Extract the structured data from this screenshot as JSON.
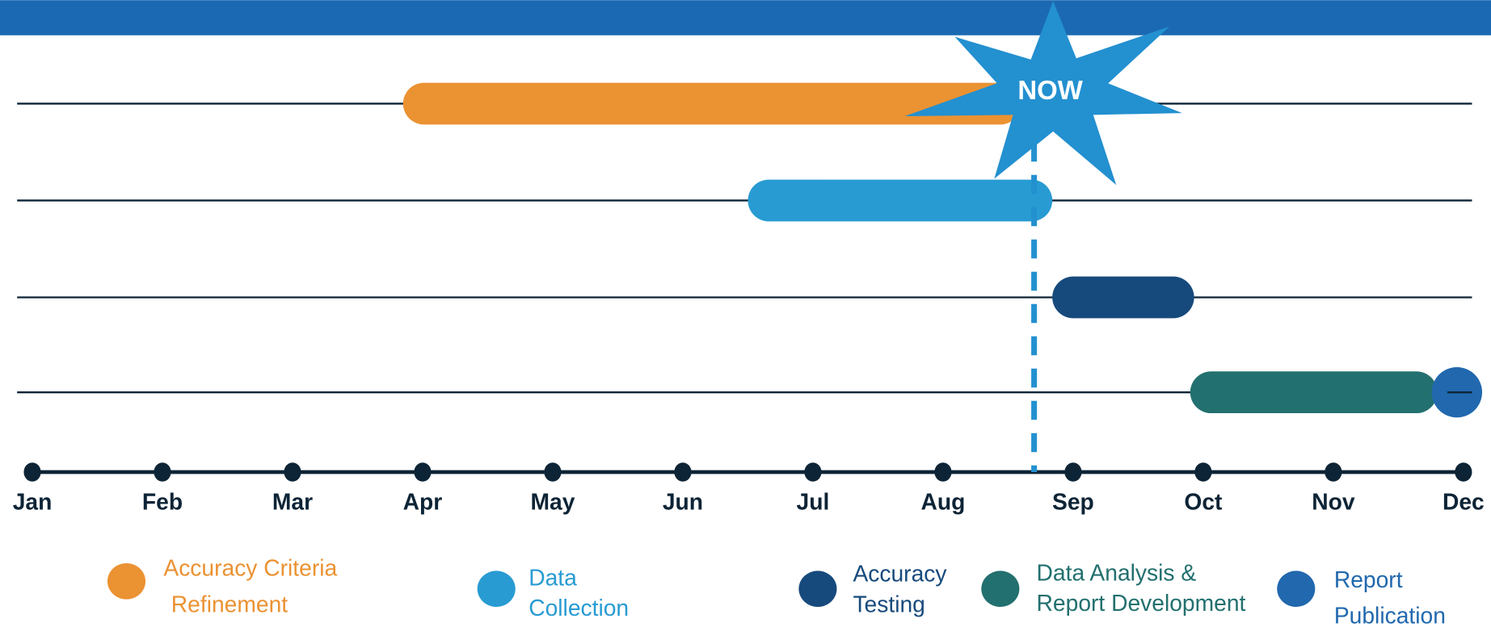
{
  "chart_data": {
    "type": "gantt",
    "categories": [
      "Jan",
      "Feb",
      "Mar",
      "Apr",
      "May",
      "Jun",
      "Jul",
      "Aug",
      "Sep",
      "Oct",
      "Nov",
      "Dec"
    ],
    "xlim": [
      0,
      11
    ],
    "now": 7.7,
    "now_label": "NOW",
    "series": [
      {
        "name": [
          "Accuracy Criteria",
          "Refinement"
        ],
        "color": "#eb9232",
        "row": 0,
        "start": 2.85,
        "end": 7.6
      },
      {
        "name": [
          "Data",
          "Collection"
        ],
        "color": "#289bd2",
        "row": 1,
        "start": 5.5,
        "end": 7.84
      },
      {
        "name": [
          "Accuracy",
          "Testing"
        ],
        "color": "#174a7c",
        "row": 2,
        "start": 7.84,
        "end": 8.93
      },
      {
        "name": [
          "Data Analysis &",
          "Report Development"
        ],
        "color": "#22706f",
        "row": 3,
        "start": 8.9,
        "end": 10.8
      },
      {
        "name": [
          "Report",
          "Publication"
        ],
        "color": "#2168ae",
        "row": 3,
        "start": 10.8,
        "end": 11.1
      }
    ]
  }
}
